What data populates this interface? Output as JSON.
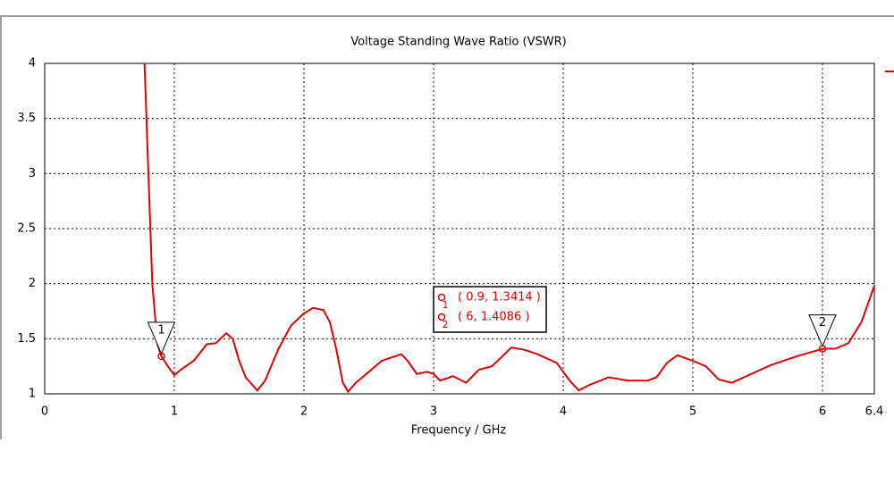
{
  "chart_data": {
    "type": "line",
    "title": "Voltage Standing Wave Ratio (VSWR)",
    "x_label": "Frequency / GHz",
    "xlim": [
      0,
      6.4
    ],
    "xticks": [
      0,
      1,
      2,
      3,
      4,
      5,
      6,
      6.4
    ],
    "ylim": [
      1,
      4
    ],
    "yticks": [
      1,
      1.5,
      2,
      2.5,
      3,
      3.5,
      4
    ],
    "grid": true,
    "series": [
      {
        "color": "#e00000",
        "x": [
          0.77,
          0.8,
          0.83,
          0.87,
          0.9,
          0.95,
          1.0,
          1.05,
          1.15,
          1.25,
          1.32,
          1.4,
          1.45,
          1.5,
          1.55,
          1.64,
          1.7,
          1.8,
          1.9,
          2.0,
          2.07,
          2.15,
          2.2,
          2.25,
          2.3,
          2.34,
          2.4,
          2.5,
          2.6,
          2.7,
          2.75,
          2.8,
          2.87,
          2.95,
          3.0,
          3.05,
          3.15,
          3.25,
          3.35,
          3.45,
          3.6,
          3.7,
          3.8,
          3.95,
          4.05,
          4.12,
          4.2,
          4.35,
          4.5,
          4.65,
          4.72,
          4.8,
          4.88,
          5.0,
          5.1,
          5.2,
          5.3,
          5.45,
          5.6,
          5.8,
          6.0,
          6.1,
          6.2,
          6.3,
          6.4
        ],
        "values": [
          4.0,
          3.0,
          2.0,
          1.45,
          1.3414,
          1.25,
          1.17,
          1.22,
          1.3,
          1.45,
          1.46,
          1.55,
          1.5,
          1.3,
          1.15,
          1.03,
          1.12,
          1.4,
          1.62,
          1.73,
          1.78,
          1.76,
          1.65,
          1.4,
          1.1,
          1.02,
          1.1,
          1.2,
          1.3,
          1.34,
          1.36,
          1.3,
          1.18,
          1.2,
          1.18,
          1.12,
          1.16,
          1.1,
          1.22,
          1.25,
          1.42,
          1.4,
          1.36,
          1.28,
          1.12,
          1.03,
          1.08,
          1.15,
          1.12,
          1.12,
          1.15,
          1.28,
          1.35,
          1.3,
          1.25,
          1.13,
          1.1,
          1.18,
          1.26,
          1.34,
          1.4086,
          1.41,
          1.46,
          1.65,
          1.98
        ]
      }
    ],
    "markers": [
      {
        "name": "1",
        "x": 0.9,
        "y": 1.3414,
        "label": "( 0.9, 1.3414 )"
      },
      {
        "name": "2",
        "x": 6,
        "y": 1.4086,
        "label": "( 6, 1.4086 )"
      }
    ]
  }
}
